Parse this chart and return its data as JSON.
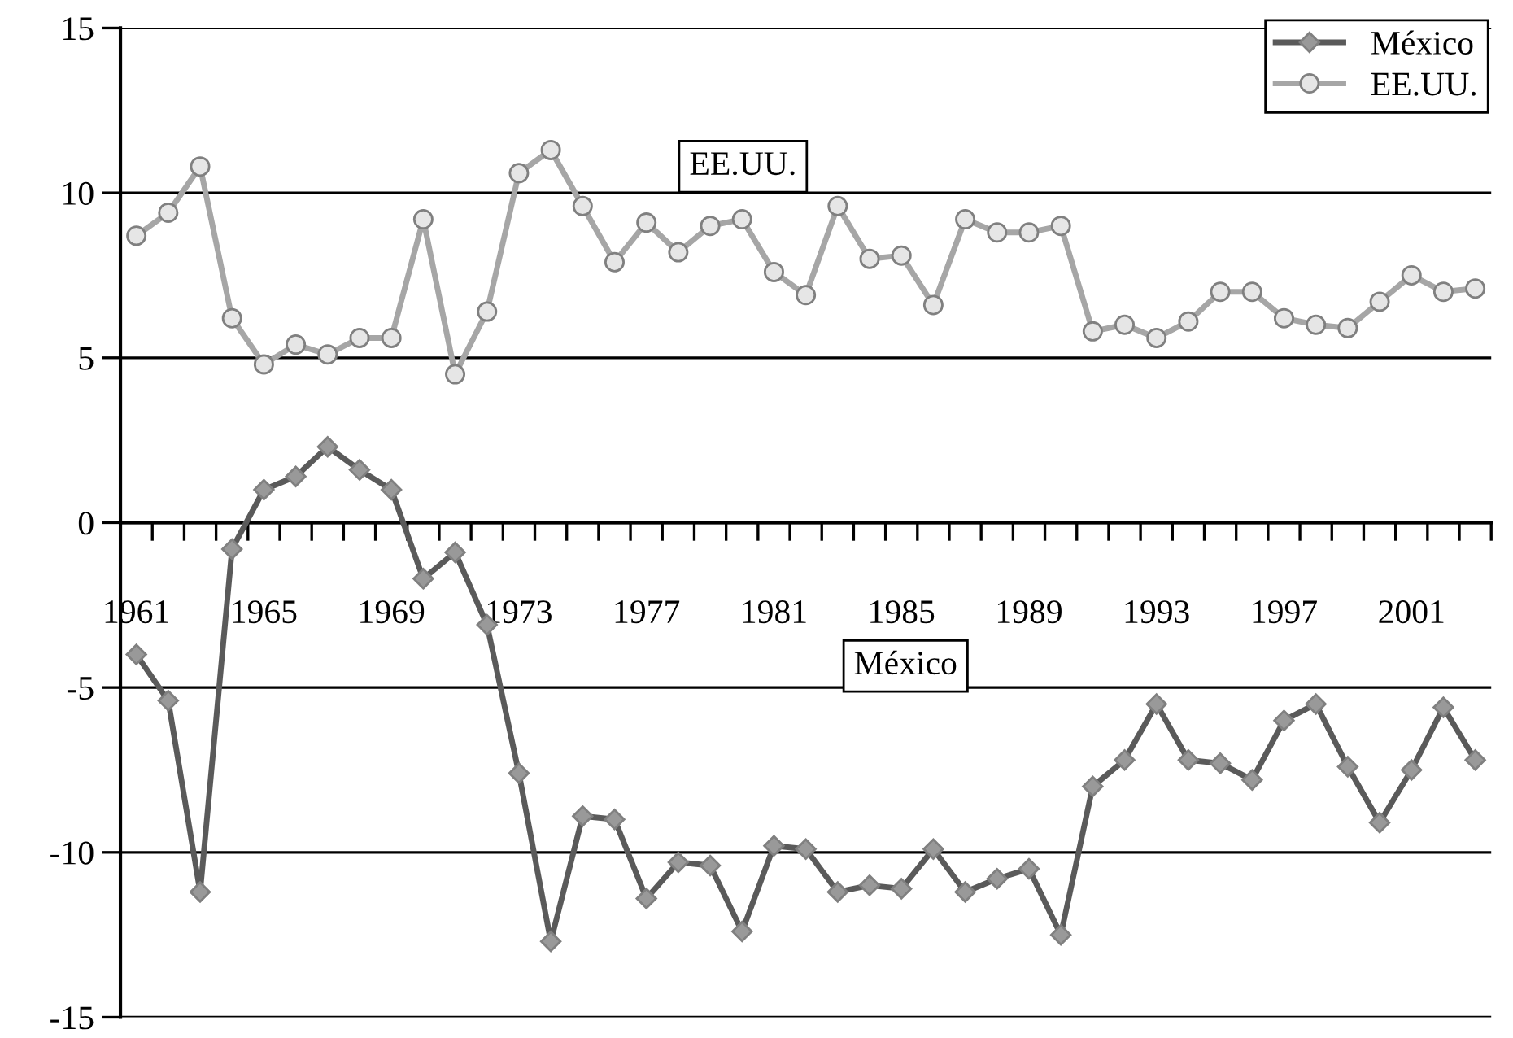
{
  "chart_data": {
    "type": "line",
    "categories": [
      "1961",
      null,
      null,
      null,
      "1965",
      null,
      null,
      null,
      "1969",
      null,
      null,
      null,
      "1973",
      null,
      null,
      null,
      "1977",
      null,
      null,
      null,
      "1981",
      null,
      null,
      null,
      "1985",
      null,
      null,
      null,
      "1989",
      null,
      null,
      null,
      "1993",
      null,
      null,
      null,
      "1997",
      null,
      null,
      null,
      "2001",
      null,
      null
    ],
    "series": [
      {
        "name": "México",
        "color": "#5a5a5a",
        "marker": "diamond",
        "values": [
          -4.0,
          -5.4,
          -11.2,
          -0.8,
          1.0,
          1.4,
          2.3,
          1.6,
          1.0,
          -1.7,
          -0.9,
          -3.1,
          -7.6,
          -12.7,
          -8.9,
          -9.0,
          -11.4,
          -10.3,
          -10.4,
          -12.4,
          -9.8,
          -9.9,
          -11.2,
          -11.0,
          -11.1,
          -9.9,
          -11.2,
          -10.8,
          -10.5,
          -12.5,
          -8.0,
          -7.2,
          -5.5,
          -7.2,
          -7.3,
          -7.8,
          -6.0,
          -5.5,
          -7.4,
          -9.1,
          -7.5,
          -5.6,
          -7.2
        ]
      },
      {
        "name": "EE.UU.",
        "color": "#a6a6a6",
        "marker": "circle",
        "values": [
          8.7,
          9.4,
          10.8,
          6.2,
          4.8,
          5.4,
          5.1,
          5.6,
          5.6,
          9.2,
          4.5,
          6.4,
          10.6,
          11.3,
          9.6,
          7.9,
          9.1,
          8.2,
          9.0,
          9.2,
          7.6,
          6.9,
          9.6,
          8.0,
          8.1,
          6.6,
          9.2,
          8.8,
          8.8,
          9.0,
          5.8,
          6.0,
          5.6,
          6.1,
          7.0,
          7.0,
          6.2,
          6.0,
          5.9,
          6.7,
          7.5,
          7.0,
          7.1
        ]
      }
    ],
    "ylim": [
      -15,
      15
    ],
    "yticks": [
      -15,
      -10,
      -5,
      0,
      5,
      10,
      15
    ],
    "grid": "y",
    "legend": "top right",
    "line_style": "solid",
    "annotations": [
      "EE.UU.",
      "México"
    ]
  }
}
